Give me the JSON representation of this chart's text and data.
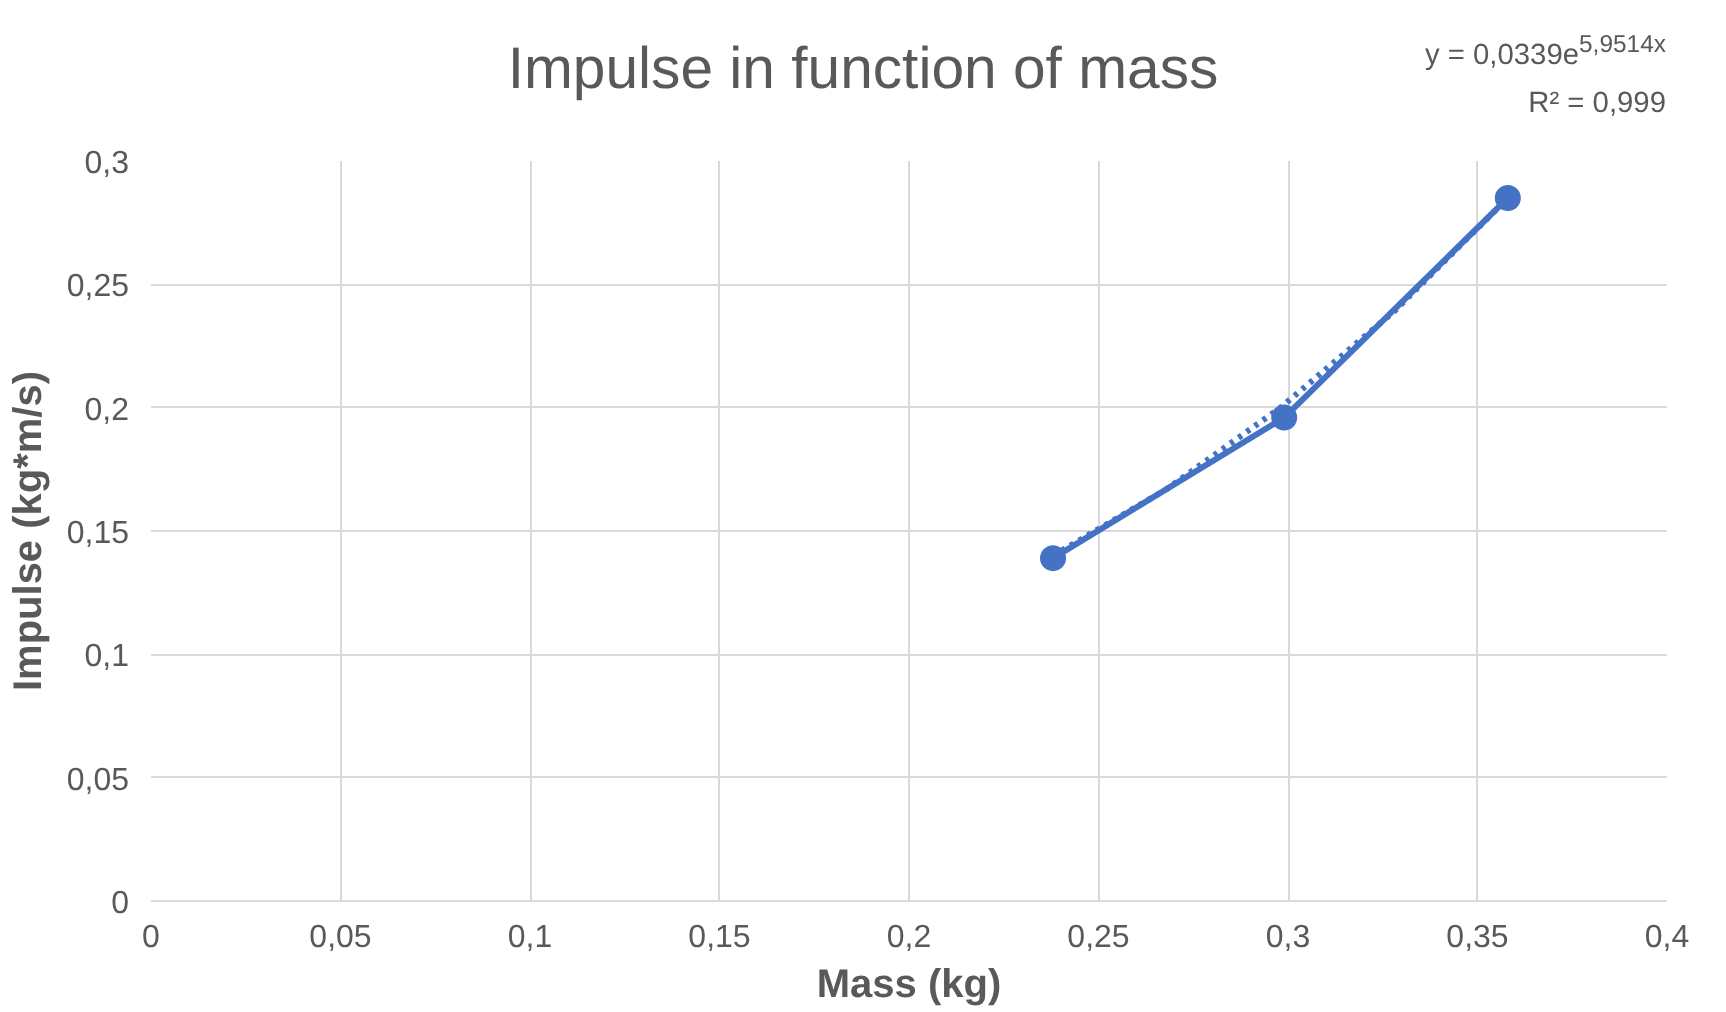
{
  "chart_data": {
    "type": "line",
    "title": "Impulse in function of mass",
    "xlabel": "Mass (kg)",
    "ylabel": "Impulse (kg*m/s)",
    "annotations": [
      "y = 0,0339e$^{5,9514x}$",
      "R² = 0,999"
    ],
    "x": [
      0.238,
      0.299,
      0.358
    ],
    "series": [
      {
        "color": "#4472c4",
        "values": [
          0.139,
          0.196,
          0.285
        ],
        "marker": "circle",
        "line_style": "solid"
      },
      {
        "type": "line",
        "color": "#4472c4",
        "x": [
          0.238,
          0.268,
          0.298,
          0.328,
          0.358
        ],
        "values": [
          0.14,
          0.167,
          0.2,
          0.239,
          0.285
        ],
        "marker": "none",
        "line_style": "dotted"
      }
    ],
    "xlim": [
      0,
      0.4
    ],
    "ylim": [
      0,
      0.3
    ],
    "xticks": [
      0,
      {
        "value": 0.05,
        "label": "0,05"
      },
      {
        "value": 0.1,
        "label": "0,1"
      },
      {
        "value": 0.15,
        "label": "0,15"
      },
      {
        "value": 0.2,
        "label": "0,2"
      },
      {
        "value": 0.25,
        "label": "0,25"
      },
      {
        "value": 0.3,
        "label": "0,3"
      },
      {
        "value": 0.35,
        "label": "0,35"
      },
      {
        "value": 0.4,
        "label": "0,4"
      }
    ],
    "yticks": [
      0,
      {
        "value": 0.05,
        "label": "0,05"
      },
      {
        "value": 0.1,
        "label": "0,1"
      },
      {
        "value": 0.15,
        "label": "0,15"
      },
      {
        "value": 0.2,
        "label": "0,2"
      },
      {
        "value": 0.25,
        "label": "0,25"
      },
      {
        "value": 0.3,
        "label": "0,3"
      }
    ],
    "grid": true
  }
}
